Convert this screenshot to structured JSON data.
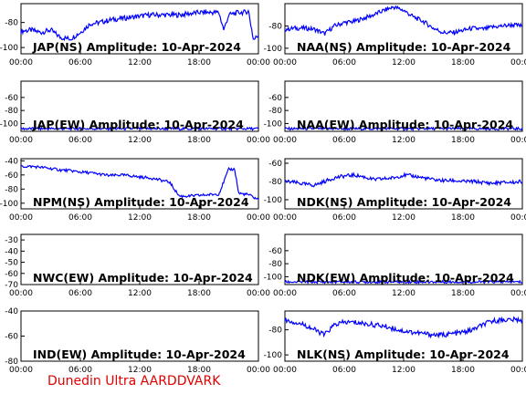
{
  "footer": "Dunedin Ultra AARDDVARK",
  "x_tick_labels": [
    "00:00",
    "06:00",
    "12:00",
    "18:00",
    "00:00"
  ],
  "line_color": "#0000ff",
  "chart_data": [
    {
      "type": "line",
      "title": "JAP(NS) Amplitude: 10-Apr-2024",
      "ylim": [
        -105,
        -65
      ],
      "yticks": [
        -100,
        -80
      ],
      "series": [
        {
          "x": [
            0,
            1,
            2,
            3,
            4,
            5,
            6,
            7,
            8,
            9,
            10,
            11,
            12,
            13,
            14,
            15,
            16,
            17,
            18,
            19,
            20,
            20.5,
            21,
            22,
            22.5,
            23,
            23.5,
            24
          ],
          "values": [
            -87,
            -86,
            -88,
            -86,
            -92,
            -93,
            -88,
            -81,
            -80,
            -78,
            -77,
            -76,
            -75,
            -74,
            -74,
            -74,
            -74,
            -73,
            -72,
            -72,
            -72,
            -86,
            -74,
            -72,
            -72,
            -71,
            -94,
            -90
          ]
        }
      ]
    },
    {
      "type": "line",
      "title": "NAA(NS) Amplitude: 10-Apr-2024",
      "ylim": [
        -105,
        -60
      ],
      "yticks": [
        -100,
        -80
      ],
      "series": [
        {
          "x": [
            0,
            1,
            2,
            3,
            4,
            5,
            6,
            7,
            8,
            9,
            10,
            11,
            12,
            13,
            14,
            15,
            16,
            17,
            18,
            19,
            20,
            21,
            22,
            23,
            24
          ],
          "values": [
            -83,
            -82,
            -82,
            -83,
            -87,
            -80,
            -77,
            -76,
            -73,
            -70,
            -66,
            -63,
            -66,
            -72,
            -76,
            -82,
            -86,
            -86,
            -84,
            -82,
            -83,
            -81,
            -80,
            -79,
            -80
          ]
        }
      ]
    },
    {
      "type": "line",
      "title": "JAP(EW) Amplitude: 10-Apr-2024",
      "ylim": [
        -112,
        -35
      ],
      "yticks": [
        -100,
        -80,
        -60
      ],
      "series": [
        {
          "x": [
            0,
            4,
            8,
            12,
            16,
            20,
            24
          ],
          "values": [
            -108,
            -108,
            -108,
            -108,
            -108,
            -108,
            -108
          ]
        }
      ]
    },
    {
      "type": "line",
      "title": "NAA(EW) Amplitude: 10-Apr-2024",
      "ylim": [
        -112,
        -35
      ],
      "yticks": [
        -100,
        -80,
        -60
      ],
      "series": [
        {
          "x": [
            0,
            4,
            8,
            12,
            16,
            20,
            24
          ],
          "values": [
            -108,
            -108,
            -108,
            -108,
            -108,
            -108,
            -108
          ]
        }
      ]
    },
    {
      "type": "line",
      "title": "NPM(NS) Amplitude: 10-Apr-2024",
      "ylim": [
        -108,
        -37
      ],
      "yticks": [
        -100,
        -80,
        -60,
        -40
      ],
      "series": [
        {
          "x": [
            0,
            1,
            2,
            3,
            4,
            5,
            6,
            7,
            8,
            9,
            10,
            11,
            12,
            13,
            14,
            15,
            16,
            17,
            18,
            19,
            20,
            21,
            21.6,
            22,
            23,
            24
          ],
          "values": [
            -48,
            -48,
            -49,
            -51,
            -53,
            -54,
            -56,
            -57,
            -59,
            -61,
            -60,
            -61,
            -63,
            -64,
            -67,
            -70,
            -90,
            -90,
            -89,
            -88,
            -87,
            -52,
            -52,
            -86,
            -88,
            -95
          ]
        }
      ]
    },
    {
      "type": "line",
      "title": "NDK(NS) Amplitude: 10-Apr-2024",
      "ylim": [
        -110,
        -55
      ],
      "yticks": [
        -100,
        -80,
        -60
      ],
      "series": [
        {
          "x": [
            0,
            1,
            2,
            3,
            4,
            5,
            6,
            7,
            8,
            9,
            10,
            11,
            12,
            13,
            14,
            15,
            16,
            17,
            18,
            19,
            20,
            21,
            22,
            23,
            24
          ],
          "values": [
            -80,
            -81,
            -83,
            -84,
            -80,
            -76,
            -74,
            -73,
            -75,
            -78,
            -77,
            -76,
            -73,
            -74,
            -76,
            -78,
            -79,
            -79,
            -80,
            -80,
            -81,
            -82,
            -81,
            -81,
            -80
          ]
        }
      ]
    },
    {
      "type": "line",
      "title": "NWC(EW) Amplitude: 10-Apr-2024",
      "ylim": [
        -70,
        -25
      ],
      "yticks": [
        -70,
        -60,
        -50,
        -40,
        -30
      ],
      "series": []
    },
    {
      "type": "line",
      "title": "NDK(EW) Amplitude: 10-Apr-2024",
      "ylim": [
        -112,
        -35
      ],
      "yticks": [
        -100,
        -80,
        -60
      ],
      "series": [
        {
          "x": [
            0,
            4,
            8,
            12,
            16,
            20,
            24
          ],
          "values": [
            -108,
            -108,
            -108,
            -108,
            -108,
            -108,
            -108
          ]
        }
      ]
    },
    {
      "type": "line",
      "title": "IND(EW) Amplitude: 10-Apr-2024",
      "ylim": [
        -80,
        -40
      ],
      "yticks": [
        -80,
        -60,
        -40
      ],
      "series": []
    },
    {
      "type": "line",
      "title": "NLK(NS) Amplitude: 10-Apr-2024",
      "ylim": [
        -105,
        -65
      ],
      "yticks": [
        -100,
        -80
      ],
      "series": [
        {
          "x": [
            0,
            1,
            2,
            3,
            4,
            5,
            6,
            7,
            8,
            9,
            10,
            11,
            12,
            13,
            14,
            15,
            16,
            17,
            18,
            19,
            20,
            21,
            22,
            23,
            24
          ],
          "values": [
            -72,
            -74,
            -76,
            -80,
            -84,
            -76,
            -74,
            -74,
            -75,
            -76,
            -77,
            -79,
            -81,
            -82,
            -83,
            -84,
            -84,
            -83,
            -82,
            -80,
            -76,
            -73,
            -72,
            -72,
            -72
          ]
        }
      ]
    }
  ]
}
